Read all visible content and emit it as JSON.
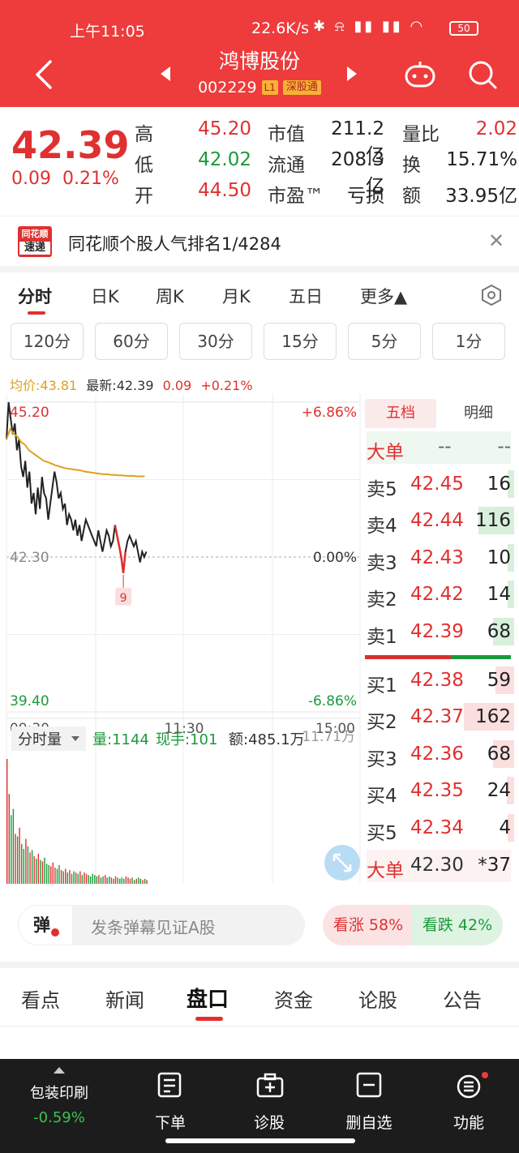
{
  "status": {
    "time": "上午11:05",
    "speed": "22.6K/s",
    "battery": "50"
  },
  "header": {
    "name": "鸿博股份",
    "code": "002229",
    "level": "L1",
    "exchange": "深股通"
  },
  "quote": {
    "price": "42.39",
    "change": "0.09",
    "change_pct": "0.21%",
    "rows": [
      {
        "l1": "高",
        "v1": "45.20",
        "v1c": "red",
        "l2": "市值",
        "v2": "211.2亿",
        "l3": "量比",
        "v3": "2.02",
        "v3c": "red"
      },
      {
        "l1": "低",
        "v1": "42.02",
        "v1c": "green",
        "l2": "流通",
        "v2": "208.3亿",
        "l3": "换",
        "v3": "15.71%",
        "v3c": "black"
      },
      {
        "l1": "开",
        "v1": "44.50",
        "v1c": "red",
        "l2": "市盈™",
        "v2": "亏损",
        "l3": "额",
        "v3": "33.95亿",
        "v3c": "black"
      }
    ]
  },
  "rank": {
    "logo_top": "同花顺",
    "logo_bottom": "速递",
    "text": "同花顺个股人气排名1/4284"
  },
  "chart_tabs": [
    "分时",
    "日K",
    "周K",
    "月K",
    "五日",
    "更多▲"
  ],
  "periods": [
    "120分",
    "60分",
    "30分",
    "15分",
    "5分",
    "1分"
  ],
  "avg_info": {
    "avg": "均价:43.81",
    "latest": "最新:42.39",
    "chg": "0.09",
    "pct": "+0.21%"
  },
  "chart_data": {
    "type": "line",
    "x_labels": [
      "09:30",
      "11:30",
      "15:00"
    ],
    "ylim": [
      39.4,
      45.2
    ],
    "y_labels_left": [
      "45.20",
      "42.30",
      "39.40"
    ],
    "y_labels_right": [
      "+6.86%",
      "0.00%",
      "-6.86%"
    ],
    "prev_close": 42.3,
    "series": [
      {
        "name": "价格",
        "values": [
          44.5,
          45.2,
          44.9,
          44.6,
          44.8,
          44.3,
          44.5,
          44.0,
          43.8,
          44.1,
          43.6,
          43.9,
          43.3,
          43.5,
          43.1,
          43.6,
          43.2,
          43.8,
          43.5,
          43.4,
          43.0,
          43.3,
          43.6,
          43.9,
          43.7,
          43.4,
          43.5,
          43.2,
          43.3,
          42.9,
          43.1,
          43.0,
          42.8,
          43.0,
          42.7,
          42.9,
          42.6,
          42.8,
          43.0,
          42.9,
          42.8,
          42.7,
          42.6,
          42.5,
          42.8,
          42.6,
          42.4,
          42.6,
          42.8,
          42.7,
          42.5,
          42.6,
          42.9,
          42.7,
          42.5,
          42.3,
          42.0,
          42.4,
          42.6,
          42.7,
          42.6,
          42.5,
          42.6,
          42.4,
          42.2,
          42.4,
          42.3,
          42.4
        ]
      },
      {
        "name": "均价",
        "values": [
          44.5,
          44.7,
          44.6,
          44.55,
          44.45,
          44.4,
          44.3,
          44.25,
          44.2,
          44.15,
          44.1,
          44.08,
          44.05,
          44.02,
          44.0,
          43.98,
          43.96,
          43.95,
          43.94,
          43.93,
          43.92,
          43.9,
          43.89,
          43.88,
          43.87,
          43.86,
          43.85,
          43.85,
          43.84,
          43.84,
          43.83,
          43.83,
          43.82,
          43.82,
          43.82,
          43.81,
          43.81,
          43.81
        ]
      }
    ],
    "min_marker": "9",
    "volume_legend": {
      "label": "分时量",
      "vol": "量:1144",
      "hand": "现手:101",
      "amount": "额:485.1万",
      "axis_max": "11.71万"
    },
    "volume": [
      100,
      72,
      55,
      60,
      40,
      38,
      45,
      32,
      28,
      36,
      30,
      25,
      27,
      22,
      20,
      24,
      19,
      18,
      21,
      16,
      15,
      14,
      17,
      13,
      12,
      15,
      11,
      10,
      12,
      9,
      11,
      8,
      10,
      9,
      8,
      10,
      7,
      9,
      8,
      7,
      6,
      8,
      7,
      6,
      7,
      5,
      6,
      7,
      5,
      6,
      5,
      4,
      6,
      5,
      4,
      5,
      4,
      6,
      5,
      4,
      5,
      3,
      4,
      5,
      4,
      3,
      4,
      3
    ]
  },
  "book": {
    "tab_five": "五档",
    "tab_detail": "明细",
    "big_top": {
      "label": "大单",
      "price": "--",
      "vol": "--"
    },
    "sell": [
      {
        "label": "卖5",
        "price": "42.45",
        "vol": "16"
      },
      {
        "label": "卖4",
        "price": "42.44",
        "vol": "116"
      },
      {
        "label": "卖3",
        "price": "42.43",
        "vol": "10"
      },
      {
        "label": "卖2",
        "price": "42.42",
        "vol": "14"
      },
      {
        "label": "卖1",
        "price": "42.39",
        "vol": "68"
      }
    ],
    "buy": [
      {
        "label": "买1",
        "price": "42.38",
        "vol": "59"
      },
      {
        "label": "买2",
        "price": "42.37",
        "vol": "162"
      },
      {
        "label": "买3",
        "price": "42.36",
        "vol": "68"
      },
      {
        "label": "买4",
        "price": "42.35",
        "vol": "24"
      },
      {
        "label": "买5",
        "price": "42.34",
        "vol": "4"
      }
    ],
    "big_bottom": {
      "label": "大单",
      "price": "42.30",
      "vol": "*37"
    }
  },
  "danmu": {
    "toggle": "弹",
    "placeholder": "发条弹幕见证A股",
    "up": "看涨 58%",
    "down": "看跌 42%"
  },
  "news_tabs": [
    "看点",
    "新闻",
    "盘口",
    "资金",
    "论股",
    "公告"
  ],
  "nav": {
    "sector": "包装印刷",
    "sector_chg": "-0.59%",
    "items": [
      "下单",
      "诊股",
      "删自选",
      "功能"
    ]
  },
  "colors": {
    "brand": "#ee3b3b",
    "up": "#e03030",
    "down": "#1a9a3a",
    "avg": "#e0a020"
  }
}
